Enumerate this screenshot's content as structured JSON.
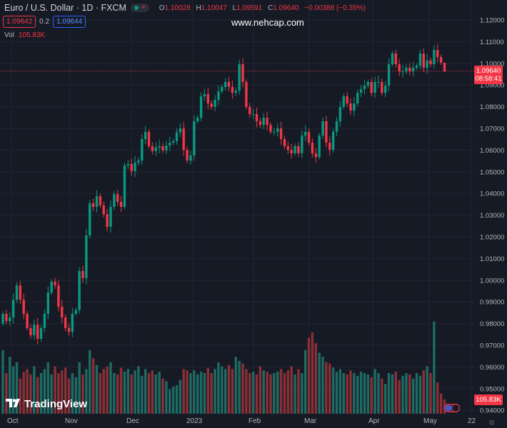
{
  "header": {
    "symbol_title": "Euro / U.S. Dollar · 1D · FXCM",
    "ohlc": {
      "o_label": "O",
      "o": "1.10028",
      "h_label": "H",
      "h": "1.10047",
      "l_label": "L",
      "l": "1.09591",
      "c_label": "C",
      "c": "1.09640",
      "change": "−0.00388 (−0.35%)"
    },
    "sell_price": "1.09642",
    "spread": "0.2",
    "buy_price": "1.09644",
    "vol_label": "Vol",
    "vol_value": "105.83K",
    "status_icon": "market-open-dot-icon"
  },
  "watermark": "www.nehcap.com",
  "brand": "TradingView",
  "price_tag": {
    "price": "1.09640",
    "countdown": "08:58:41"
  },
  "volume_tag": "105.83K",
  "colors": {
    "background": "#161a25",
    "up": "#089981",
    "down": "#f23645",
    "volume_up": "#1d6b63",
    "volume_down": "#8a3036",
    "grid": "#222633"
  },
  "chart_data": {
    "type": "candlestick",
    "title": "Euro / U.S. Dollar · 1D · FXCM",
    "ylim": [
      0.94,
      1.12
    ],
    "y_ticks": [
      "1.12000",
      "1.11000",
      "1.10000",
      "1.09000",
      "1.08000",
      "1.07000",
      "1.06000",
      "1.05000",
      "1.04000",
      "1.03000",
      "1.02000",
      "1.01000",
      "1.00000",
      "0.99000",
      "0.98000",
      "0.97000",
      "0.96000",
      "0.95000",
      "0.94000"
    ],
    "x_ticks": [
      "Oct",
      "Nov",
      "Dec",
      "2023",
      "Feb",
      "Mar",
      "Apr",
      "May",
      "22"
    ],
    "grid": true,
    "first_open": 0.98,
    "close": [
      0.9845,
      0.9812,
      0.9828,
      0.991,
      0.9976,
      0.991,
      0.9845,
      0.9779,
      0.9746,
      0.9795,
      0.973,
      0.9779,
      0.9845,
      0.9943,
      0.9993,
      0.9976,
      0.9878,
      0.9828,
      0.9779,
      0.9762,
      0.9845,
      0.9862,
      1.0042,
      1.0009,
      1.0207,
      1.0355,
      1.0338,
      1.0388,
      1.0345,
      1.0305,
      1.0246,
      1.0338,
      1.0397,
      1.0361,
      1.0338,
      1.0529,
      1.0536,
      1.0503,
      1.0542,
      1.0552,
      1.0651,
      1.0684,
      1.0618,
      1.0595,
      1.0612,
      1.0618,
      1.0599,
      1.0621,
      1.0634,
      1.0641,
      1.0681,
      1.07,
      1.0601,
      1.0552,
      1.0575,
      1.0733,
      1.0749,
      1.0848,
      1.0858,
      1.0815,
      1.0799,
      1.0832,
      1.0871,
      1.0891,
      1.0914,
      1.0891,
      1.0864,
      1.0874,
      1.0996,
      1.0914,
      1.0799,
      1.0766,
      1.0766,
      1.0733,
      1.0716,
      1.0749,
      1.0716,
      1.0684,
      1.0684,
      1.07,
      1.0651,
      1.0618,
      1.0601,
      1.0585,
      1.0618,
      1.0585,
      1.0667,
      1.0684,
      1.0634,
      1.0585,
      1.0568,
      1.0667,
      1.0733,
      1.0634,
      1.0601,
      1.0684,
      1.0733,
      1.0799,
      1.0848,
      1.0815,
      1.0782,
      1.0815,
      1.0864,
      1.0881,
      1.0897,
      1.0914,
      1.0864,
      1.0914,
      1.0914,
      1.0864,
      1.0897,
      1.0996,
      1.1045,
      1.0996,
      1.0963,
      1.0963,
      1.098,
      1.0963,
      1.098,
      1.0989,
      1.1045,
      1.098,
      1.1013,
      1.0996,
      1.1062,
      1.1029,
      1.1003,
      1.0964
    ],
    "last_candle": {
      "open": 1.10028,
      "high": 1.10047,
      "low": 1.09591,
      "close": 1.0964
    },
    "volume_k": [
      470,
      300,
      420,
      350,
      380,
      260,
      310,
      330,
      290,
      350,
      270,
      300,
      330,
      380,
      290,
      350,
      300,
      320,
      340,
      260,
      300,
      270,
      380,
      290,
      330,
      470,
      410,
      360,
      300,
      330,
      350,
      380,
      300,
      290,
      340,
      310,
      330,
      290,
      320,
      350,
      280,
      330,
      300,
      320,
      290,
      310,
      260,
      240,
      180,
      200,
      210,
      250,
      330,
      320,
      300,
      320,
      290,
      310,
      300,
      340,
      300,
      330,
      380,
      350,
      330,
      360,
      330,
      420,
      390,
      370,
      330,
      300,
      310,
      290,
      350,
      320,
      310,
      290,
      300,
      310,
      330,
      300,
      320,
      350,
      290,
      330,
      300,
      470,
      560,
      600,
      520,
      450,
      420,
      380,
      370,
      340,
      310,
      330,
      300,
      290,
      320,
      300,
      280,
      310,
      300,
      290,
      270,
      330,
      300,
      260,
      220,
      300,
      290,
      310,
      250,
      280,
      300,
      290,
      260,
      300,
      280,
      320,
      350,
      300,
      680,
      230,
      150,
      105.83
    ]
  }
}
